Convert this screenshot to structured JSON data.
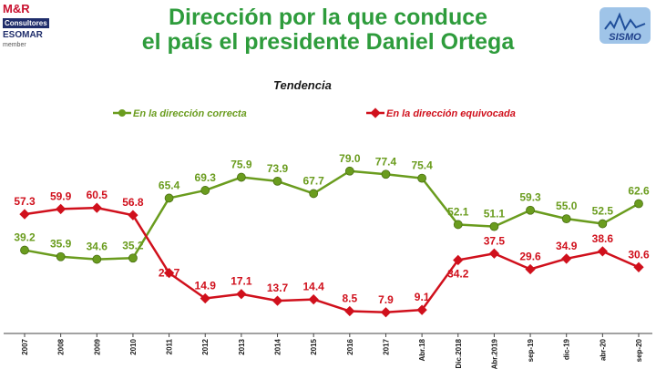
{
  "title_lines": [
    "Dirección por la que conduce",
    "el país el presidente Daniel Ortega"
  ],
  "logo_left": {
    "brand": "M&R",
    "line2": "Consultores",
    "line3": "ESOMAR",
    "line4": "member"
  },
  "logo_right": {
    "text": "SISMO"
  },
  "colors": {
    "title": "#2e9c3c",
    "green": "#6a9c1e",
    "red": "#d0101c"
  },
  "chart_data": {
    "type": "line",
    "title": "Tendencia",
    "categories": [
      "2007",
      "2008",
      "2009",
      "2010",
      "2011",
      "2012",
      "2013",
      "2014",
      "2015",
      "2016",
      "2017",
      "Abr.18",
      "Dic.2018",
      "Abr.2019",
      "sep-19",
      "dic-19",
      "abr-20",
      "sep-20"
    ],
    "series": [
      {
        "name": "En la dirección correcta",
        "color": "#6a9c1e",
        "values": [
          39.2,
          35.9,
          34.6,
          35.2,
          65.4,
          69.3,
          75.9,
          73.9,
          67.7,
          79.0,
          77.4,
          75.4,
          52.1,
          51.1,
          59.3,
          55.0,
          52.5,
          62.6
        ]
      },
      {
        "name": "En la dirección equivocada",
        "color": "#d0101c",
        "values": [
          57.3,
          59.9,
          60.5,
          56.8,
          27.7,
          14.9,
          17.1,
          13.7,
          14.4,
          8.5,
          7.9,
          9.1,
          34.2,
          37.5,
          29.6,
          34.9,
          38.6,
          30.6
        ]
      }
    ],
    "ylim": [
      0,
      100
    ],
    "grid": false,
    "legend": "top"
  }
}
